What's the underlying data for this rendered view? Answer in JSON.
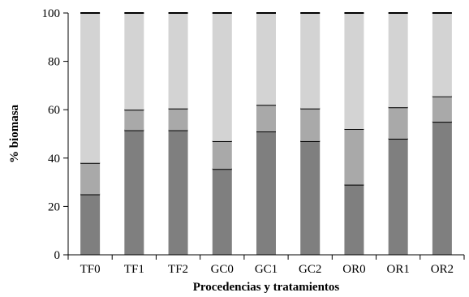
{
  "chart_data": {
    "type": "bar",
    "stacked": true,
    "title": "",
    "xlabel": "Procedencias y tratamientos",
    "ylabel": "% biomasa",
    "ylim": [
      0,
      100
    ],
    "yticks": [
      0,
      20,
      40,
      60,
      80,
      100
    ],
    "grid": false,
    "categories": [
      "TF0",
      "TF1",
      "TF2",
      "GC0",
      "GC1",
      "GC2",
      "OR0",
      "OR1",
      "OR2"
    ],
    "series": [
      {
        "color": "#7f7f7f",
        "values": [
          25,
          51.5,
          51.5,
          35.5,
          51,
          47,
          29,
          48,
          55
        ]
      },
      {
        "color": "#a9a9a9",
        "values": [
          13,
          8.5,
          9,
          11.5,
          11,
          13.5,
          23,
          13,
          10.5
        ]
      },
      {
        "color": "#d3d3d3",
        "values": [
          62,
          40,
          39.5,
          53,
          38,
          39.5,
          48,
          39,
          34.5
        ]
      }
    ]
  }
}
